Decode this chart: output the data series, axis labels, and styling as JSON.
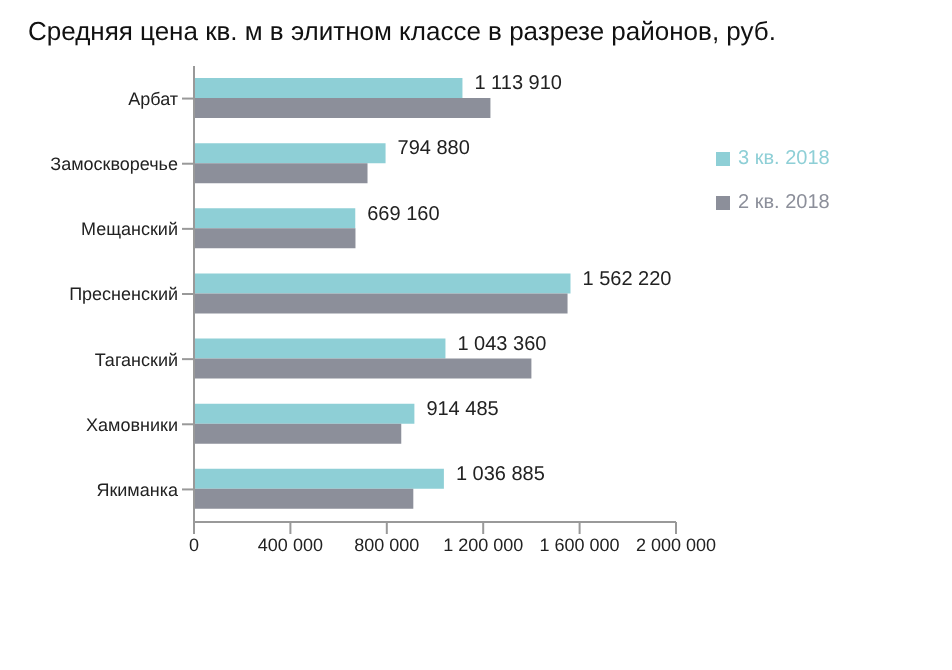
{
  "chart_data": {
    "type": "bar",
    "orientation": "horizontal",
    "title": "Средняя цена кв. м в элитном классе в разрезе районов, руб.",
    "categories": [
      "Арбат",
      "Замоскворечье",
      "Мещанский",
      "Пресненский",
      "Таганский",
      "Хамовники",
      "Якиманка"
    ],
    "series": [
      {
        "name": "3 кв. 2018",
        "color": "#8ecfd6",
        "values": [
          1113910,
          794880,
          669160,
          1562220,
          1043360,
          914485,
          1036885
        ],
        "value_labels": [
          "1 113 910",
          "794 880",
          "669 160",
          "1 562 220",
          "1 043 360",
          "914 485",
          "1 036 885"
        ]
      },
      {
        "name": "2 кв. 2018",
        "color": "#8c8f9a",
        "values": [
          1230000,
          720000,
          670000,
          1550000,
          1400000,
          860000,
          910000
        ]
      }
    ],
    "xlim": [
      0,
      2000000
    ],
    "xticks": [
      0,
      400000,
      800000,
      1200000,
      1600000,
      2000000
    ],
    "grid": false,
    "legend": "top right"
  }
}
